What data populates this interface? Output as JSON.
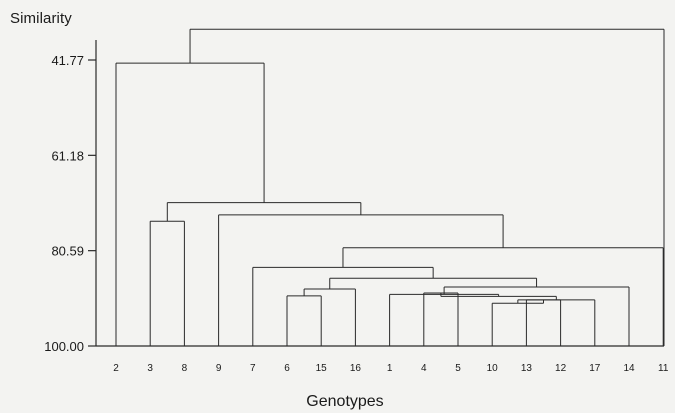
{
  "chart_data": {
    "type": "dendrogram",
    "title": "",
    "ylabel": "Similarity",
    "xlabel": "Genotypes",
    "ylim": [
      100.0,
      41.77
    ],
    "yticks": [
      "41.77",
      "61.18",
      "80.59",
      "100.00"
    ],
    "ytick_values": [
      41.77,
      61.18,
      80.59,
      100.0
    ],
    "leaves": [
      "2",
      "3",
      "8",
      "9",
      "7",
      "6",
      "15",
      "16",
      "1",
      "4",
      "5",
      "10",
      "13",
      "12",
      "17",
      "14",
      "11"
    ],
    "merges": [
      {
        "a": "13",
        "b": "12",
        "similarity": 90.6
      },
      {
        "a": "10",
        "b": "13+12",
        "similarity": 91.3
      },
      {
        "a": "10+13+12",
        "b": "17",
        "similarity": 90.6
      },
      {
        "a": "4",
        "b": "5",
        "similarity": 89.2
      },
      {
        "a": "4+5",
        "b": "10+13+12+17",
        "similarity": 89.9
      },
      {
        "a": "1",
        "b": "4+5+10+13+12+17",
        "similarity": 89.5
      },
      {
        "a": "6",
        "b": "15",
        "similarity": 89.8
      },
      {
        "a": "6+15",
        "b": "16",
        "similarity": 88.4
      },
      {
        "a": "1+4+5+10+13+12+17",
        "b": "14",
        "similarity": 88.0
      },
      {
        "a": "6+15+16",
        "b": "1+4+5+10+13+12+17+14",
        "similarity": 86.2
      },
      {
        "a": "7",
        "b": "6+15+16+1+4+5+10+13+12+17+14",
        "similarity": 84.0
      },
      {
        "a": "7+6+15+16+1+4+5+10+13+12+17+14",
        "b": "11",
        "similarity": 80.0
      },
      {
        "a": "9",
        "b": "7+6+15+16+1+4+5+10+13+12+17+14+11",
        "similarity": 73.3
      },
      {
        "a": "3",
        "b": "8",
        "similarity": 74.6
      },
      {
        "a": "3+8",
        "b": "9+7+6+15+16+1+4+5+10+13+12+17+14+11",
        "similarity": 70.8
      },
      {
        "a": "2",
        "b": "3+8+9+7+6+15+16+1+4+5+10+13+12+17+14+11",
        "similarity": 42.4
      },
      {
        "a": "2+3+8+9+7+6+15+16+1+4+5+10+13+12+17+14+11",
        "b": "root",
        "similarity": 35.5
      }
    ],
    "grid": false,
    "legend": "none"
  },
  "colors": {
    "background": "#f3f3f1",
    "line": "#2a2a2a",
    "text": "#1a1a1a"
  }
}
